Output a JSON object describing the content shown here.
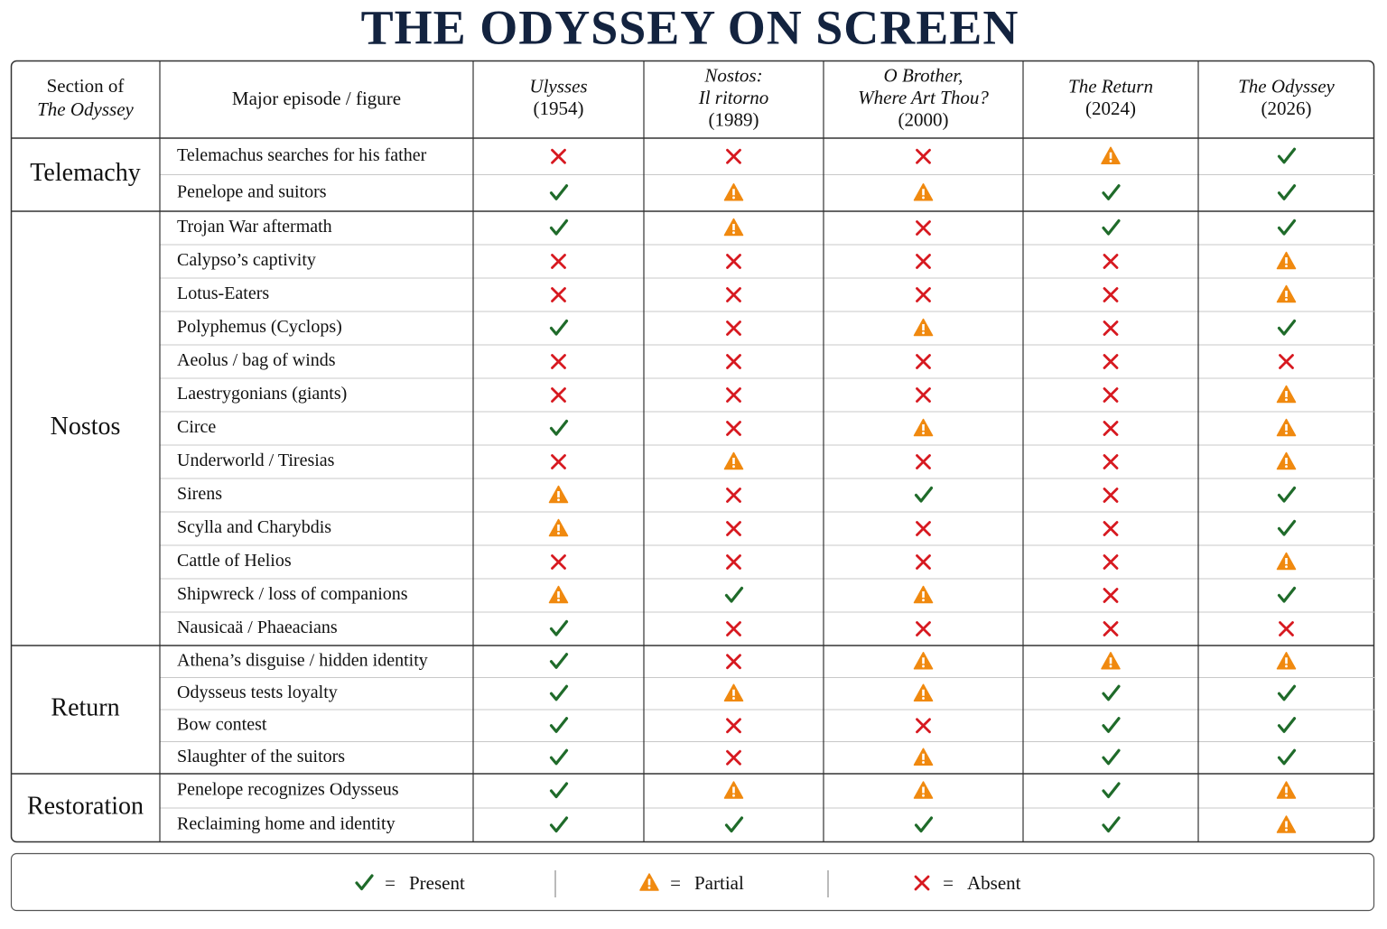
{
  "header": {
    "title": "THE ODYSSEY ON SCREEN"
  },
  "table": {
    "columns": {
      "section": [
        "Section of",
        "The Odyssey"
      ],
      "episode": "Major episode / figure",
      "films": [
        {
          "title": [
            "Ulysses"
          ],
          "year": "(1954)"
        },
        {
          "title": [
            "Nostos:",
            "Il ritorno"
          ],
          "year": "(1989)"
        },
        {
          "title": [
            "O Brother,",
            "Where Art Thou?"
          ],
          "year": "(2000)"
        },
        {
          "title": [
            "The Return"
          ],
          "year": "(2024)"
        },
        {
          "title": [
            "The Odyssey"
          ],
          "year": "(2026)"
        }
      ]
    },
    "groups": [
      {
        "section": "Telemachy",
        "rows": [
          {
            "episode": "Telemachus searches for his father",
            "status": [
              2,
              2,
              2,
              1,
              0
            ]
          },
          {
            "episode": "Penelope and suitors",
            "status": [
              0,
              1,
              1,
              0,
              0
            ]
          }
        ]
      },
      {
        "section": "Nostos",
        "rows": [
          {
            "episode": "Trojan War aftermath",
            "status": [
              0,
              1,
              2,
              0,
              0
            ]
          },
          {
            "episode": "Calypso’s captivity",
            "status": [
              2,
              2,
              2,
              2,
              1
            ]
          },
          {
            "episode": "Lotus-Eaters",
            "status": [
              2,
              2,
              2,
              2,
              1
            ]
          },
          {
            "episode": "Polyphemus (Cyclops)",
            "status": [
              0,
              2,
              1,
              2,
              0
            ]
          },
          {
            "episode": "Aeolus / bag of winds",
            "status": [
              2,
              2,
              2,
              2,
              2
            ]
          },
          {
            "episode": "Laestrygonians (giants)",
            "status": [
              2,
              2,
              2,
              2,
              1
            ]
          },
          {
            "episode": "Circe",
            "status": [
              0,
              2,
              1,
              2,
              1
            ]
          },
          {
            "episode": "Underworld / Tiresias",
            "status": [
              2,
              1,
              2,
              2,
              1
            ]
          },
          {
            "episode": "Sirens",
            "status": [
              1,
              2,
              0,
              2,
              0
            ]
          },
          {
            "episode": "Scylla and Charybdis",
            "status": [
              1,
              2,
              2,
              2,
              0
            ]
          },
          {
            "episode": "Cattle of Helios",
            "status": [
              2,
              2,
              2,
              2,
              1
            ]
          },
          {
            "episode": "Shipwreck / loss of companions",
            "status": [
              1,
              0,
              1,
              2,
              0
            ]
          },
          {
            "episode": "Nausicaä / Phaeacians",
            "status": [
              0,
              2,
              2,
              2,
              2
            ]
          }
        ]
      },
      {
        "section": "Return",
        "rows": [
          {
            "episode": "Athena’s disguise / hidden identity",
            "status": [
              0,
              2,
              1,
              1,
              1
            ]
          },
          {
            "episode": "Odysseus tests loyalty",
            "status": [
              0,
              1,
              1,
              0,
              0
            ]
          },
          {
            "episode": "Bow contest",
            "status": [
              0,
              2,
              2,
              0,
              0
            ]
          },
          {
            "episode": "Slaughter of the suitors",
            "status": [
              0,
              2,
              1,
              0,
              0
            ]
          }
        ]
      },
      {
        "section": "Restoration",
        "rows": [
          {
            "episode": "Penelope recognizes Odysseus",
            "status": [
              0,
              1,
              1,
              0,
              1
            ]
          },
          {
            "episode": "Reclaiming home and identity",
            "status": [
              0,
              0,
              0,
              0,
              1
            ]
          }
        ]
      }
    ]
  },
  "legend": {
    "items": [
      {
        "equals": "=",
        "label": "Present"
      },
      {
        "equals": "=",
        "label": "Partial"
      },
      {
        "equals": "=",
        "label": "Absent"
      }
    ]
  }
}
